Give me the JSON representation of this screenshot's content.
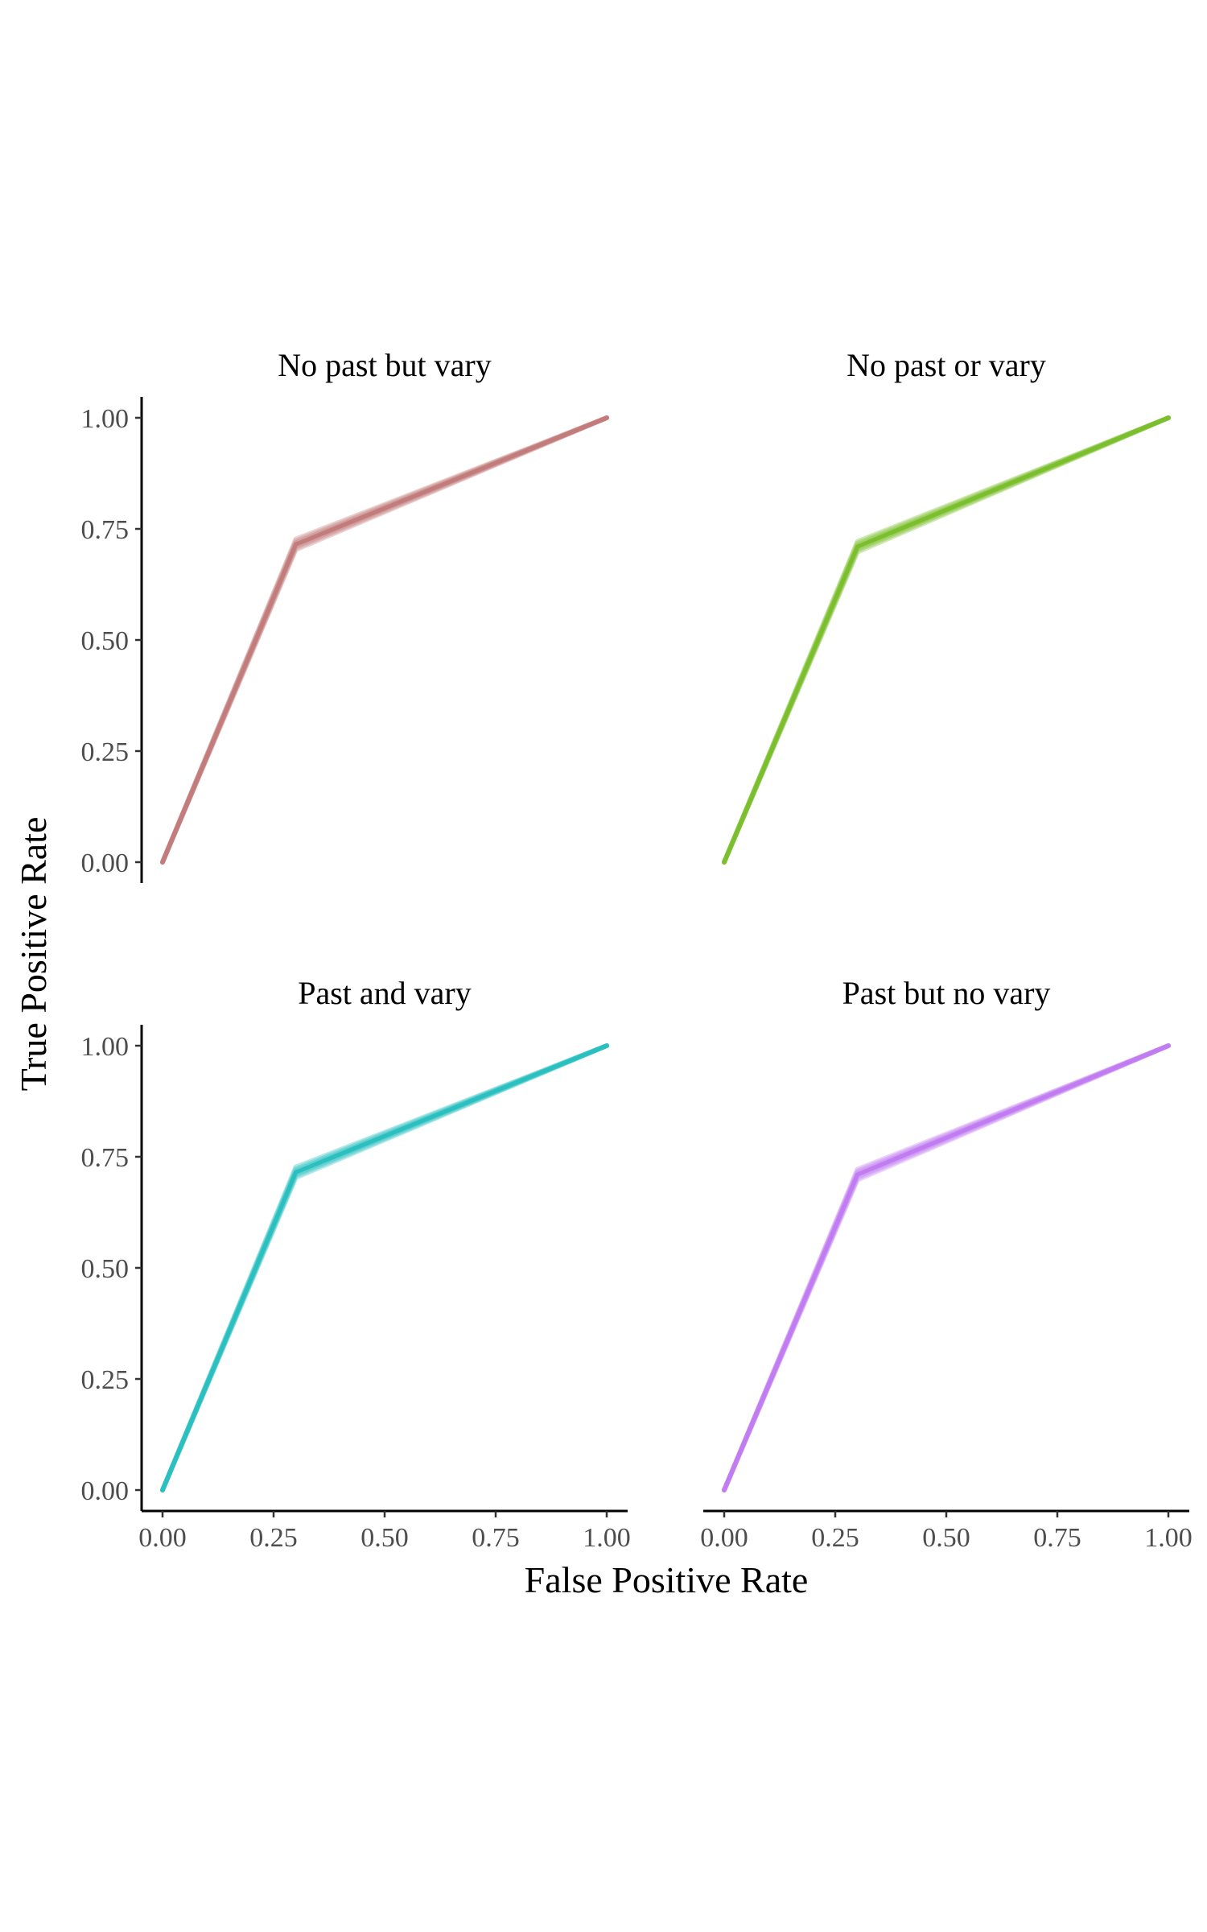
{
  "chart_data": {
    "type": "line",
    "facets": [
      {
        "title": "No past but vary",
        "color": "#C27C7C",
        "x": [
          0.0,
          0.3,
          1.0
        ],
        "y": [
          0.0,
          0.715,
          1.0
        ],
        "band_spread": 0.012
      },
      {
        "title": "No past or vary",
        "color": "#7CBF2E",
        "x": [
          0.0,
          0.3,
          1.0
        ],
        "y": [
          0.0,
          0.71,
          1.0
        ],
        "band_spread": 0.012
      },
      {
        "title": "Past and vary",
        "color": "#2BBFBF",
        "x": [
          0.0,
          0.3,
          1.0
        ],
        "y": [
          0.0,
          0.715,
          1.0
        ],
        "band_spread": 0.012
      },
      {
        "title": "Past but no vary",
        "color": "#C07CF0",
        "x": [
          0.0,
          0.3,
          1.0
        ],
        "y": [
          0.0,
          0.71,
          1.0
        ],
        "band_spread": 0.012
      }
    ],
    "xlabel": "False Positive Rate",
    "ylabel": "True Positive Rate",
    "xlim": [
      0,
      1
    ],
    "ylim": [
      0,
      1
    ],
    "xticks": [
      "0.00",
      "0.25",
      "0.50",
      "0.75",
      "1.00"
    ],
    "yticks": [
      "0.00",
      "0.25",
      "0.50",
      "0.75",
      "1.00"
    ],
    "grid": false,
    "legend": "none"
  }
}
